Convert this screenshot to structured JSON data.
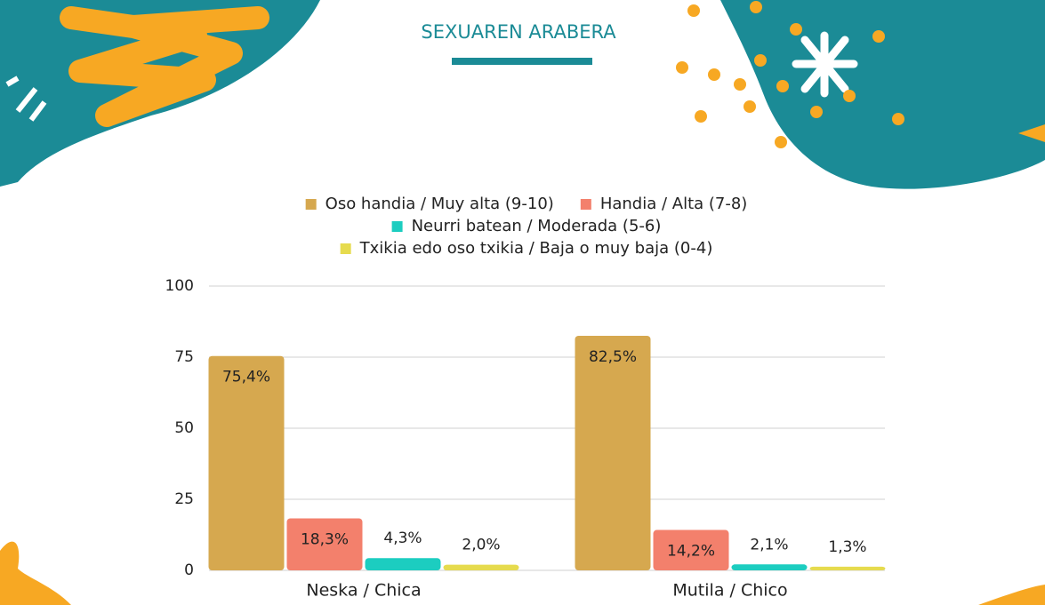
{
  "chart_data": {
    "type": "bar",
    "title": "SEXUAREN ARABERA",
    "categories": [
      "Neska / Chica",
      "Mutila / Chico"
    ],
    "series": [
      {
        "name": "Oso handia / Muy alta (9-10)",
        "color": "#d6a84f",
        "values": [
          75.4,
          82.5
        ],
        "value_labels": [
          "75,4%",
          "82,5%"
        ]
      },
      {
        "name": "Handia / Alta (7-8)",
        "color": "#f3806c",
        "values": [
          18.3,
          14.2
        ],
        "value_labels": [
          "18,3%",
          "14,2%"
        ]
      },
      {
        "name": "Neurri batean / Moderada (5-6)",
        "color": "#1ccdc0",
        "values": [
          4.3,
          2.1
        ],
        "value_labels": [
          "4,3%",
          "2,1%"
        ]
      },
      {
        "name": "Txikia edo oso txikia / Baja o muy baja (0-4)",
        "color": "#e6db4e",
        "values": [
          2.0,
          1.3
        ],
        "value_labels": [
          "2,0%",
          "1,3%"
        ]
      }
    ],
    "ylim": [
      0,
      100
    ],
    "yticks": [
      0,
      25,
      50,
      75,
      100
    ],
    "grid": true
  }
}
